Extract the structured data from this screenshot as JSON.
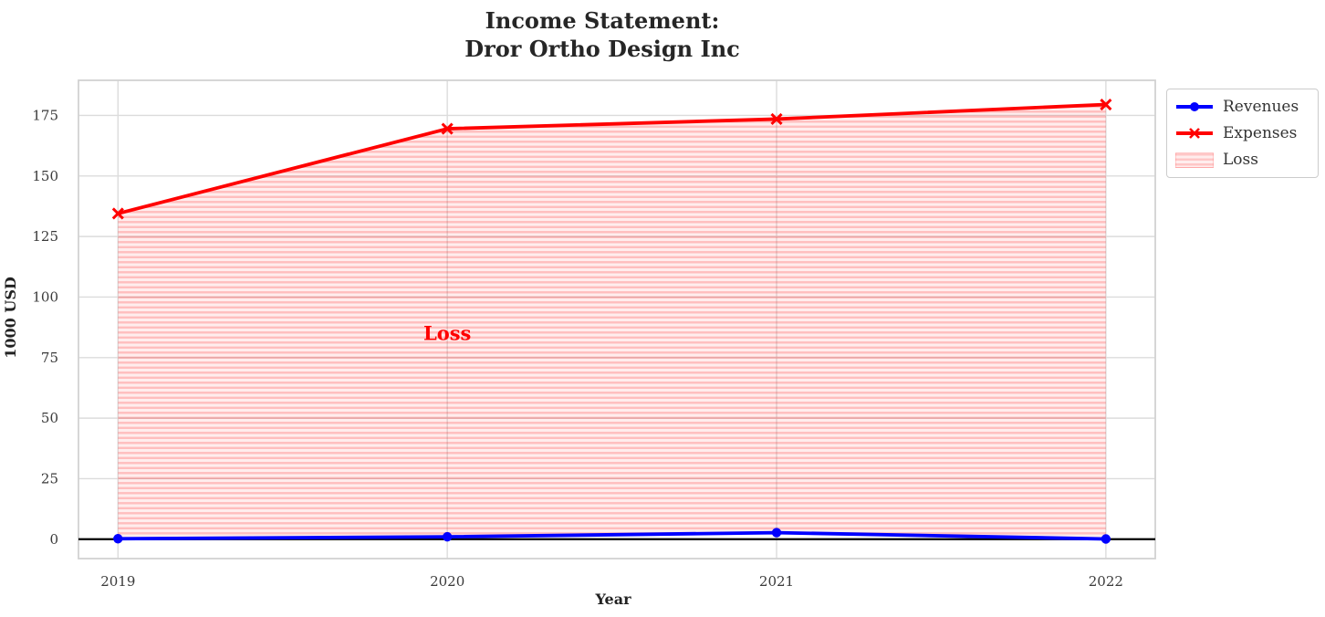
{
  "title": {
    "text": "Income Statement:\nDror Ortho Design Inc"
  },
  "chart_data": {
    "type": "line",
    "x": [
      2019,
      2020,
      2021,
      2022
    ],
    "series": [
      {
        "name": "Revenues",
        "values": [
          0.2,
          1.0,
          2.7,
          0.1
        ],
        "color": "#0000ff",
        "marker": "circle"
      },
      {
        "name": "Expenses",
        "values": [
          134.5,
          169.5,
          173.5,
          179.5
        ],
        "color": "#ff0000",
        "marker": "x"
      }
    ],
    "fill_between": {
      "name": "Loss",
      "upper_series": "Expenses",
      "lower_series": "Revenues",
      "color": "#ff0000",
      "hatch": "horizontal-lines",
      "alpha": 0.12
    },
    "annotation": {
      "text": "Loss",
      "x": 2020,
      "y": 85,
      "color": "#ff0000"
    },
    "zero_line": {
      "y": 0,
      "color": "#000000"
    },
    "xlabel": "Year",
    "ylabel": "1000 USD",
    "xticks": [
      2019,
      2020,
      2021,
      2022
    ],
    "yticks": [
      0,
      25,
      50,
      75,
      100,
      125,
      150,
      175
    ],
    "xlim": [
      2018.88,
      2022.15
    ],
    "ylim": [
      -8,
      189.5
    ],
    "grid": true,
    "legend": {
      "position": "outside-top-right",
      "items": [
        {
          "label": "Revenues",
          "swatch": "line-circle",
          "color": "#0000ff"
        },
        {
          "label": "Expenses",
          "swatch": "line-x",
          "color": "#ff0000"
        },
        {
          "label": "Loss",
          "swatch": "hatch-patch",
          "color": "#ff0000"
        }
      ]
    },
    "style": {
      "grid_color": "#dcdcdc",
      "frame_color": "#d2d2d2",
      "tick_color": "#3a3a3a",
      "label_color": "#222222"
    }
  }
}
